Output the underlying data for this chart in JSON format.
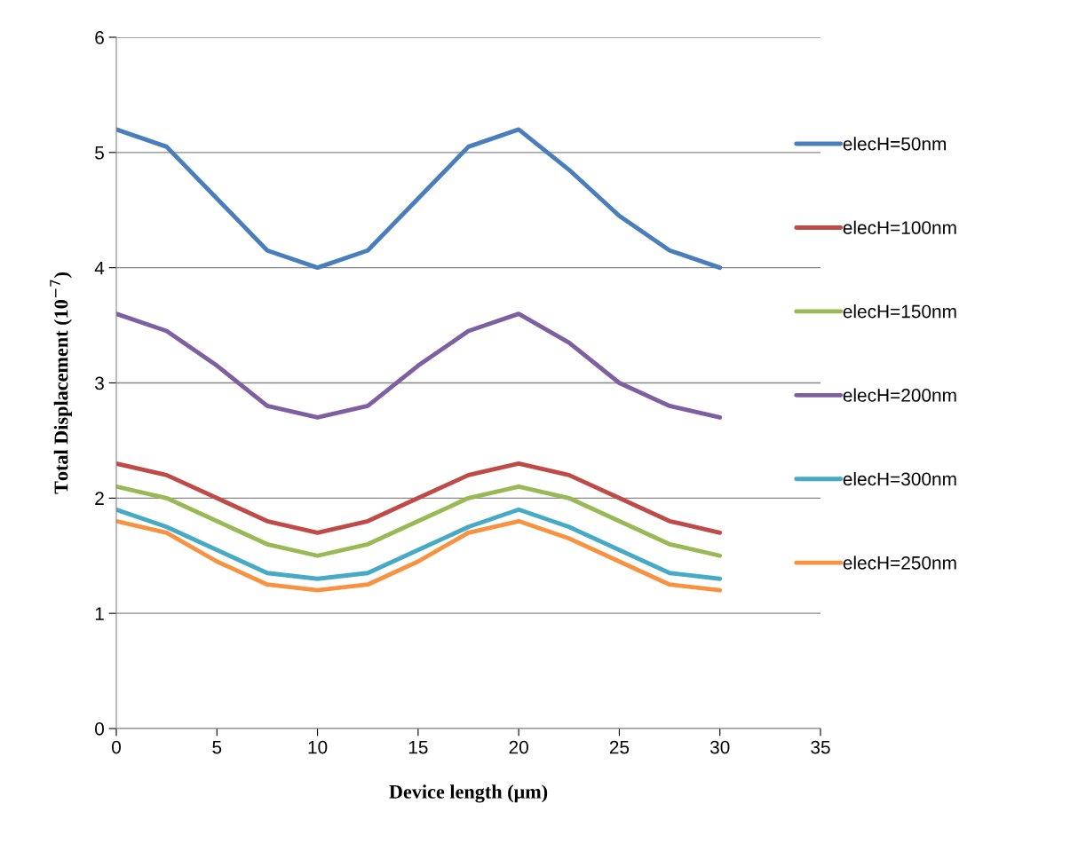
{
  "chart_data": {
    "type": "line",
    "xlabel": "Device length (μm)",
    "ylabel": "Total Displacement (10$^{−7}$)",
    "x": [
      0,
      2.5,
      5,
      7.5,
      10,
      12.5,
      15,
      17.5,
      20,
      22.5,
      25,
      27.5,
      30
    ],
    "series": [
      {
        "name": "elecH=50nm",
        "color": "#4a7ebb",
        "values": [
          5.2,
          5.05,
          4.6,
          4.15,
          4.0,
          4.15,
          4.6,
          5.05,
          5.2,
          4.85,
          4.45,
          4.15,
          4.0
        ]
      },
      {
        "name": "elecH=100nm",
        "color": "#be4b48",
        "values": [
          2.3,
          2.2,
          2.0,
          1.8,
          1.7,
          1.8,
          2.0,
          2.2,
          2.3,
          2.2,
          2.0,
          1.8,
          1.7
        ]
      },
      {
        "name": "elecH=150nm",
        "color": "#98b954",
        "values": [
          2.1,
          2.0,
          1.8,
          1.6,
          1.5,
          1.6,
          1.8,
          2.0,
          2.1,
          2.0,
          1.8,
          1.6,
          1.5
        ]
      },
      {
        "name": "elecH=200nm",
        "color": "#7d60a0",
        "values": [
          3.6,
          3.45,
          3.15,
          2.8,
          2.7,
          2.8,
          3.15,
          3.45,
          3.6,
          3.35,
          3.0,
          2.8,
          2.7
        ]
      },
      {
        "name": "elecH=300nm",
        "color": "#46aac5",
        "values": [
          1.9,
          1.75,
          1.55,
          1.35,
          1.3,
          1.35,
          1.55,
          1.75,
          1.9,
          1.75,
          1.55,
          1.35,
          1.3
        ]
      },
      {
        "name": "elecH=250nm",
        "color": "#f69240",
        "values": [
          1.8,
          1.7,
          1.45,
          1.25,
          1.2,
          1.25,
          1.45,
          1.7,
          1.8,
          1.65,
          1.45,
          1.25,
          1.2
        ]
      }
    ],
    "xlim": [
      0,
      35
    ],
    "xticks": [
      0,
      5,
      10,
      15,
      20,
      25,
      30,
      35
    ],
    "ylim": [
      0,
      6
    ],
    "yticks": [
      0,
      1,
      2,
      3,
      4,
      5,
      6
    ],
    "grid": "y",
    "legend": "right",
    "marker": "none",
    "line_style": "solid"
  }
}
